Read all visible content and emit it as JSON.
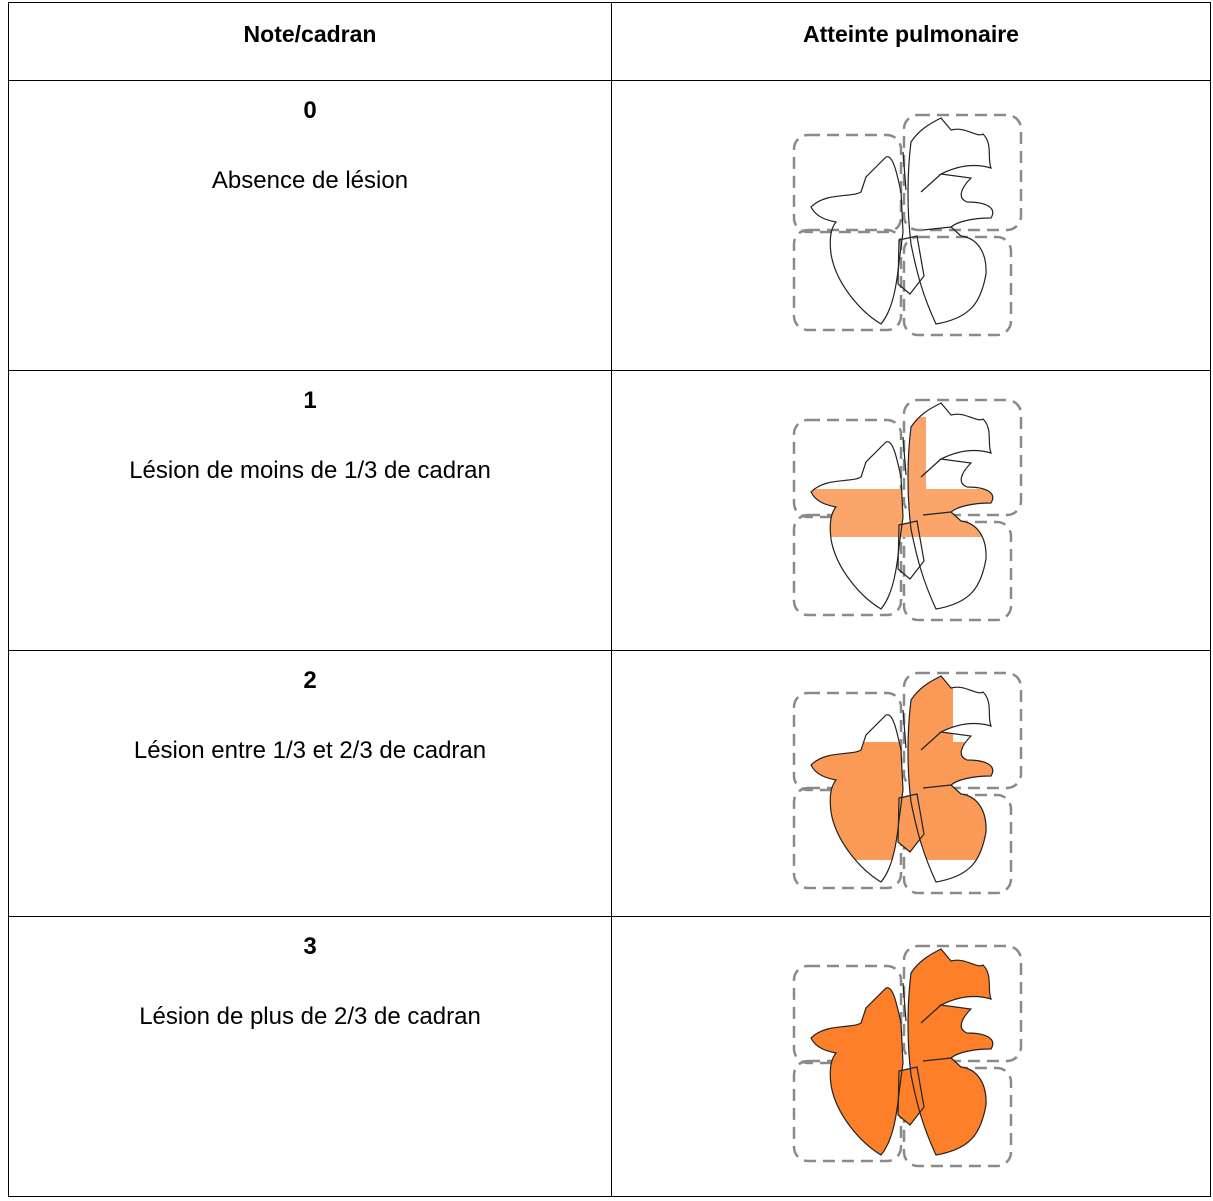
{
  "table": {
    "headers": [
      "Note/cadran",
      "Atteinte pulmonaire"
    ],
    "rows": [
      {
        "score": "0",
        "description": "Absence de lésion"
      },
      {
        "score": "1",
        "description": "Lésion de moins de 1/3 de cadran"
      },
      {
        "score": "2",
        "description": "Lésion entre 1/3 et 2/3 de cadran"
      },
      {
        "score": "3",
        "description": "Lésion de plus de 2/3 de cadran"
      }
    ]
  }
}
